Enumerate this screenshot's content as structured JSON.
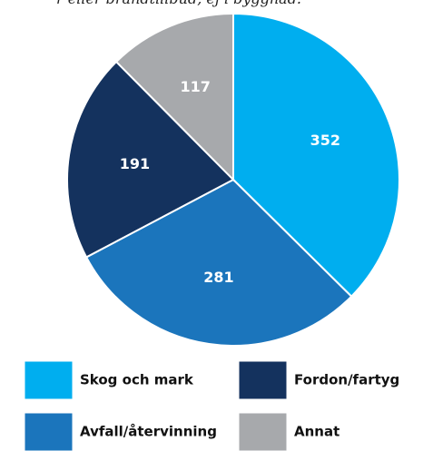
{
  "chart_data": {
    "type": "pie",
    "title": "r eller brandtillbud, ej i byggnad.",
    "categories": [
      "Skog och mark",
      "Avfall/återvinning",
      "Fordon/fartyg",
      "Annat"
    ],
    "values": [
      352,
      281,
      191,
      117
    ],
    "colors": [
      "#00aeef",
      "#1b75bc",
      "#14325e",
      "#a7a9ac"
    ]
  }
}
